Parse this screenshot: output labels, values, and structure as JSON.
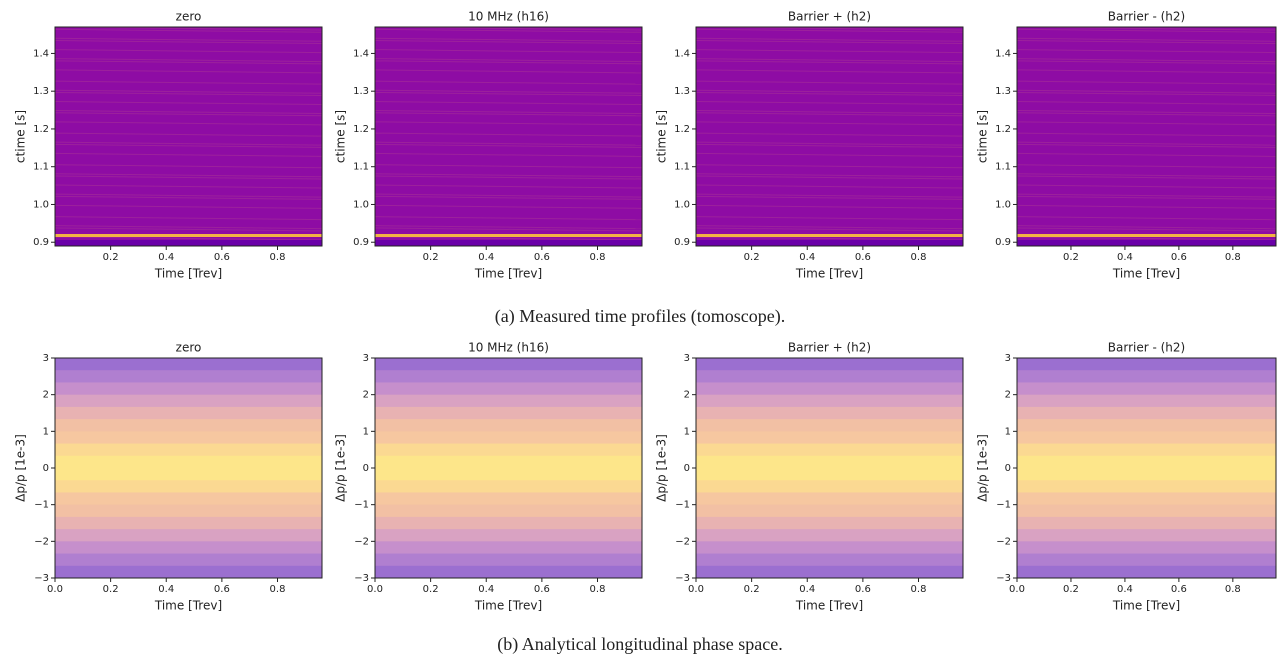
{
  "chart_data": [
    {
      "type": "heatmap",
      "title": "zero",
      "xlabel": "Time [Trev]",
      "ylabel": "ctime [s]",
      "xlim": [
        0,
        0.96
      ],
      "xticks": [
        0.2,
        0.4,
        0.6,
        0.8
      ],
      "ylim": [
        0.89,
        1.47
      ],
      "yticks": [
        0.9,
        {
          "value": 1.0,
          "label": "1.0"
        },
        1.1,
        1.2,
        1.3,
        1.4
      ]
    },
    {
      "type": "heatmap",
      "title": "10 MHz (h16)",
      "xlabel": "Time [Trev]",
      "ylabel": "ctime [s]",
      "xlim": [
        0,
        0.96
      ],
      "xticks": [
        0.2,
        0.4,
        0.6,
        0.8
      ],
      "ylim": [
        0.89,
        1.47
      ],
      "yticks": [
        0.9,
        {
          "value": 1.0,
          "label": "1.0"
        },
        1.1,
        1.2,
        1.3,
        1.4
      ]
    },
    {
      "type": "heatmap",
      "title": "Barrier + (h2)",
      "xlabel": "Time [Trev]",
      "ylabel": "ctime [s]",
      "xlim": [
        0,
        0.96
      ],
      "xticks": [
        0.2,
        0.4,
        0.6,
        0.8
      ],
      "ylim": [
        0.89,
        1.47
      ],
      "yticks": [
        0.9,
        {
          "value": 1.0,
          "label": "1.0"
        },
        1.1,
        1.2,
        1.3,
        1.4
      ]
    },
    {
      "type": "heatmap",
      "title": "Barrier - (h2)",
      "xlabel": "Time [Trev]",
      "ylabel": "ctime [s]",
      "xlim": [
        0,
        0.96
      ],
      "xticks": [
        0.2,
        0.4,
        0.6,
        0.8
      ],
      "ylim": [
        0.89,
        1.47
      ],
      "yticks": [
        0.9,
        {
          "value": 1.0,
          "label": "1.0"
        },
        1.1,
        1.2,
        1.3,
        1.4
      ]
    },
    {
      "type": "contour",
      "title": "zero",
      "xlabel": "Time [Trev]",
      "ylabel": "Δp/p [1e-3]",
      "xlim": [
        0,
        0.96
      ],
      "xticks": [
        {
          "value": 0,
          "label": "0.0"
        },
        0.2,
        0.4,
        0.6,
        0.8
      ],
      "ylim": [
        -3,
        3
      ],
      "yticks": [
        {
          "value": -3,
          "label": "−3"
        },
        {
          "value": -2,
          "label": "−2"
        },
        {
          "value": -1,
          "label": "−1"
        },
        0,
        1,
        2,
        3
      ]
    },
    {
      "type": "contour",
      "title": "10 MHz (h16)",
      "xlabel": "Time [Trev]",
      "ylabel": "Δp/p [1e-3]",
      "xlim": [
        0,
        0.96
      ],
      "xticks": [
        {
          "value": 0,
          "label": "0.0"
        },
        0.2,
        0.4,
        0.6,
        0.8
      ],
      "ylim": [
        -3,
        3
      ],
      "yticks": [
        {
          "value": -3,
          "label": "−3"
        },
        {
          "value": -2,
          "label": "−2"
        },
        {
          "value": -1,
          "label": "−1"
        },
        0,
        1,
        2,
        3
      ]
    },
    {
      "type": "contour",
      "title": "Barrier + (h2)",
      "xlabel": "Time [Trev]",
      "ylabel": "Δp/p [1e-3]",
      "xlim": [
        0,
        0.96
      ],
      "xticks": [
        {
          "value": 0,
          "label": "0.0"
        },
        0.2,
        0.4,
        0.6,
        0.8
      ],
      "ylim": [
        -3,
        3
      ],
      "yticks": [
        {
          "value": -3,
          "label": "−3"
        },
        {
          "value": -2,
          "label": "−2"
        },
        {
          "value": -1,
          "label": "−1"
        },
        0,
        1,
        2,
        3
      ]
    },
    {
      "type": "contour",
      "title": "Barrier - (h2)",
      "xlabel": "Time [Trev]",
      "ylabel": "Δp/p [1e-3]",
      "xlim": [
        0,
        0.96
      ],
      "xticks": [
        {
          "value": 0,
          "label": "0.0"
        },
        0.2,
        0.4,
        0.6,
        0.8
      ],
      "ylim": [
        -3,
        3
      ],
      "yticks": [
        {
          "value": -3,
          "label": "−3"
        },
        {
          "value": -2,
          "label": "−2"
        },
        {
          "value": -1,
          "label": "−1"
        },
        0,
        1,
        2,
        3
      ]
    }
  ],
  "captions": [
    "(a) Measured time profiles (tomoscope).",
    "(b) Analytical longitudinal phase space."
  ]
}
